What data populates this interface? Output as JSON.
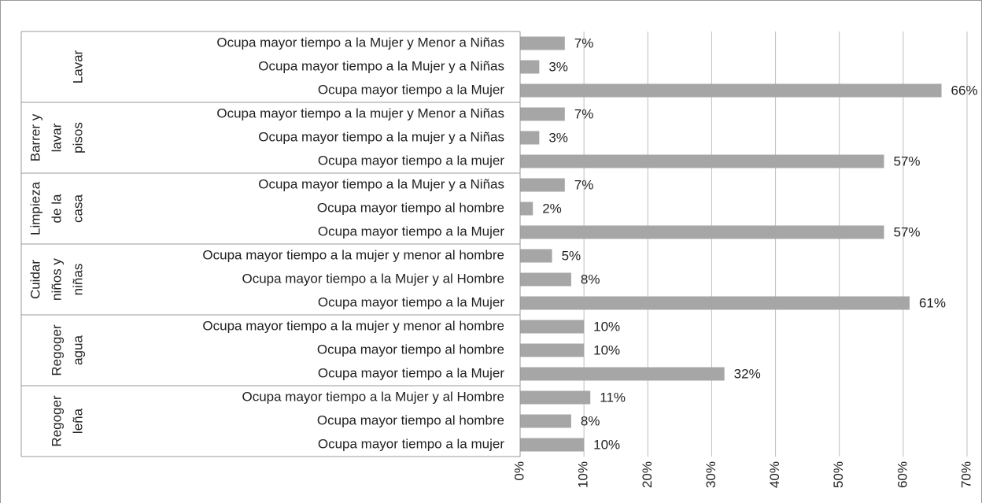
{
  "chart_data": {
    "type": "bar",
    "orientation": "horizontal",
    "color": "#a6a6a6",
    "grid": true,
    "xlim": [
      0,
      70
    ],
    "xticks": [
      {
        "value": 0,
        "label": "0%"
      },
      {
        "value": 10,
        "label": "10%"
      },
      {
        "value": 20,
        "label": "20%"
      },
      {
        "value": 30,
        "label": "30%"
      },
      {
        "value": 40,
        "label": "40%"
      },
      {
        "value": 50,
        "label": "50%"
      },
      {
        "value": 60,
        "label": "60%"
      },
      {
        "value": 70,
        "label": "70%"
      }
    ],
    "groups": [
      {
        "label": [
          "Lavar"
        ],
        "categories": [
          "Ocupa mayor tiempo a la Mujer y Menor a Niñas",
          "Ocupa mayor tiempo a la Mujer y a Niñas",
          "Ocupa mayor tiempo a la Mujer"
        ],
        "values": [
          7,
          3,
          66
        ],
        "value_labels": [
          "7%",
          "3%",
          "66%"
        ]
      },
      {
        "label": [
          "Barrer y",
          "lavar",
          "pisos"
        ],
        "categories": [
          "Ocupa mayor tiempo a la mujer  y Menor a Niñas",
          "Ocupa mayor tiempo a la mujer y a Niñas",
          "Ocupa mayor tiempo a la mujer"
        ],
        "values": [
          7,
          3,
          57
        ],
        "value_labels": [
          "7%",
          "3%",
          "57%"
        ]
      },
      {
        "label": [
          "Limpieza",
          "de la",
          "casa"
        ],
        "categories": [
          "Ocupa mayor tiempo a la Mujer y a Niñas",
          "Ocupa mayor tiempo al hombre",
          "Ocupa mayor tiempo a la Mujer"
        ],
        "values": [
          7,
          2,
          57
        ],
        "value_labels": [
          "7%",
          "2%",
          "57%"
        ]
      },
      {
        "label": [
          "Cuidar",
          "niños y",
          "niñas"
        ],
        "categories": [
          "Ocupa mayor tiempo a la mujer y menor al hombre",
          "Ocupa mayor tiempo a la Mujer y al Hombre",
          "Ocupa mayor tiempo a la Mujer"
        ],
        "values": [
          5,
          8,
          61
        ],
        "value_labels": [
          "5%",
          "8%",
          "61%"
        ]
      },
      {
        "label": [
          "Regoger",
          "agua"
        ],
        "categories": [
          "Ocupa mayor tiempo a la mujer y menor al hombre",
          "Ocupa mayor tiempo al hombre",
          "Ocupa mayor tiempo a la Mujer"
        ],
        "values": [
          10,
          10,
          32
        ],
        "value_labels": [
          "10%",
          "10%",
          "32%"
        ]
      },
      {
        "label": [
          "Regoger",
          "leña"
        ],
        "categories": [
          "Ocupa mayor tiempo a la Mujer y al Hombre",
          "Ocupa mayor tiempo al hombre",
          "Ocupa mayor tiempo a la mujer"
        ],
        "values": [
          11,
          8,
          10
        ],
        "value_labels": [
          "11%",
          "8%",
          "10%"
        ]
      }
    ]
  }
}
